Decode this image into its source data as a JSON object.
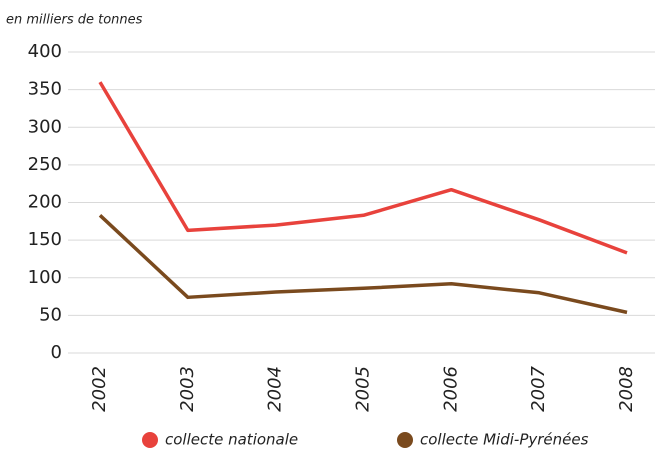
{
  "chart_data": {
    "type": "line",
    "y_label": "en milliers de tonnes",
    "categories": [
      "2002",
      "2003",
      "2004",
      "2005",
      "2006",
      "2007",
      "2008"
    ],
    "series": [
      {
        "name": "collecte nationale",
        "color": "#e8423c",
        "values": [
          360,
          163,
          170,
          183,
          217,
          177,
          133
        ]
      },
      {
        "name": "collecte Midi-Pyrénées",
        "color": "#7a4a1e",
        "values": [
          183,
          74,
          81,
          86,
          92,
          80,
          54
        ]
      }
    ],
    "ylim": [
      0,
      400
    ],
    "yticks": [
      0,
      50,
      100,
      150,
      200,
      250,
      300,
      350,
      400
    ],
    "grid": true
  }
}
